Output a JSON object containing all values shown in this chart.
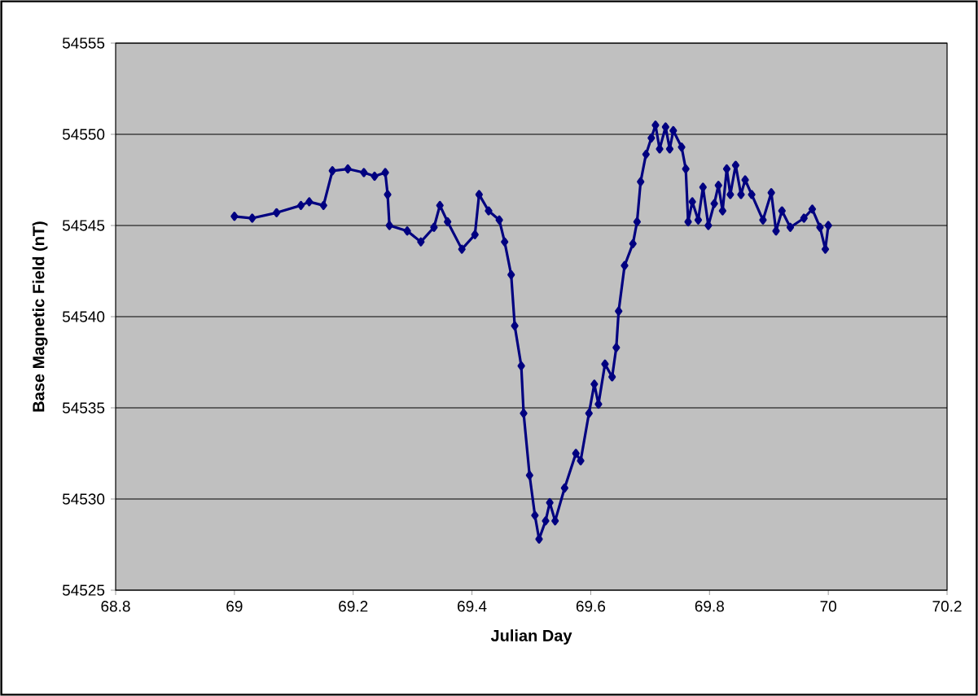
{
  "chart_data": {
    "type": "line",
    "xlabel": "Julian Day",
    "ylabel": "Base Magnetic Field (nT)",
    "x": [
      69.0,
      69.03,
      69.071,
      69.112,
      69.126,
      69.15,
      69.165,
      69.191,
      69.218,
      69.236,
      69.254,
      69.258,
      69.261,
      69.291,
      69.314,
      69.336,
      69.346,
      69.359,
      69.383,
      69.405,
      69.412,
      69.428,
      69.446,
      69.455,
      69.466,
      69.472,
      69.483,
      69.487,
      69.497,
      69.506,
      69.513,
      69.524,
      69.531,
      69.54,
      69.556,
      69.575,
      69.583,
      69.597,
      69.606,
      69.613,
      69.624,
      69.636,
      69.643,
      69.647,
      69.657,
      69.671,
      69.678,
      69.684,
      69.693,
      69.702,
      69.709,
      69.716,
      69.726,
      69.733,
      69.739,
      69.753,
      69.76,
      69.764,
      69.771,
      69.781,
      69.789,
      69.798,
      69.808,
      69.815,
      69.822,
      69.829,
      69.835,
      69.844,
      69.853,
      69.86,
      69.871,
      69.89,
      69.904,
      69.912,
      69.922,
      69.936,
      69.959,
      69.973,
      69.986,
      69.995,
      70.0
    ],
    "series": [
      {
        "color": "#000080",
        "values": [
          54545.5,
          54545.4,
          54545.7,
          54546.1,
          54546.3,
          54546.1,
          54548.0,
          54548.1,
          54547.9,
          54547.7,
          54547.9,
          54546.7,
          54545.0,
          54544.7,
          54544.1,
          54544.9,
          54546.1,
          54545.2,
          54543.7,
          54544.5,
          54546.7,
          54545.8,
          54545.3,
          54544.1,
          54542.3,
          54539.5,
          54537.3,
          54534.7,
          54531.3,
          54529.1,
          54527.8,
          54528.8,
          54529.8,
          54528.8,
          54530.6,
          54532.5,
          54532.1,
          54534.7,
          54536.3,
          54535.2,
          54537.4,
          54536.7,
          54538.3,
          54540.3,
          54542.8,
          54544.0,
          54545.2,
          54547.4,
          54548.9,
          54549.8,
          54550.5,
          54549.2,
          54550.4,
          54549.2,
          54550.2,
          54549.3,
          54548.1,
          54545.2,
          54546.3,
          54545.3,
          54547.1,
          54545.0,
          54546.2,
          54547.2,
          54545.8,
          54548.1,
          54546.7,
          54548.3,
          54546.7,
          54547.5,
          54546.7,
          54545.3,
          54546.8,
          54544.7,
          54545.8,
          54544.9,
          54545.4,
          54545.9,
          54544.9,
          54543.7,
          54545.0
        ]
      }
    ],
    "xlim": [
      68.8,
      70.2
    ],
    "xticks": [
      68.8,
      69,
      69.2,
      69.4,
      69.6,
      69.8,
      70,
      70.2
    ],
    "ylim": [
      54525,
      54555
    ],
    "yticks": [
      54525,
      54530,
      54535,
      54540,
      54545,
      54550,
      54555
    ],
    "grid": "y",
    "marker": "diamond",
    "line_style": "solid"
  }
}
